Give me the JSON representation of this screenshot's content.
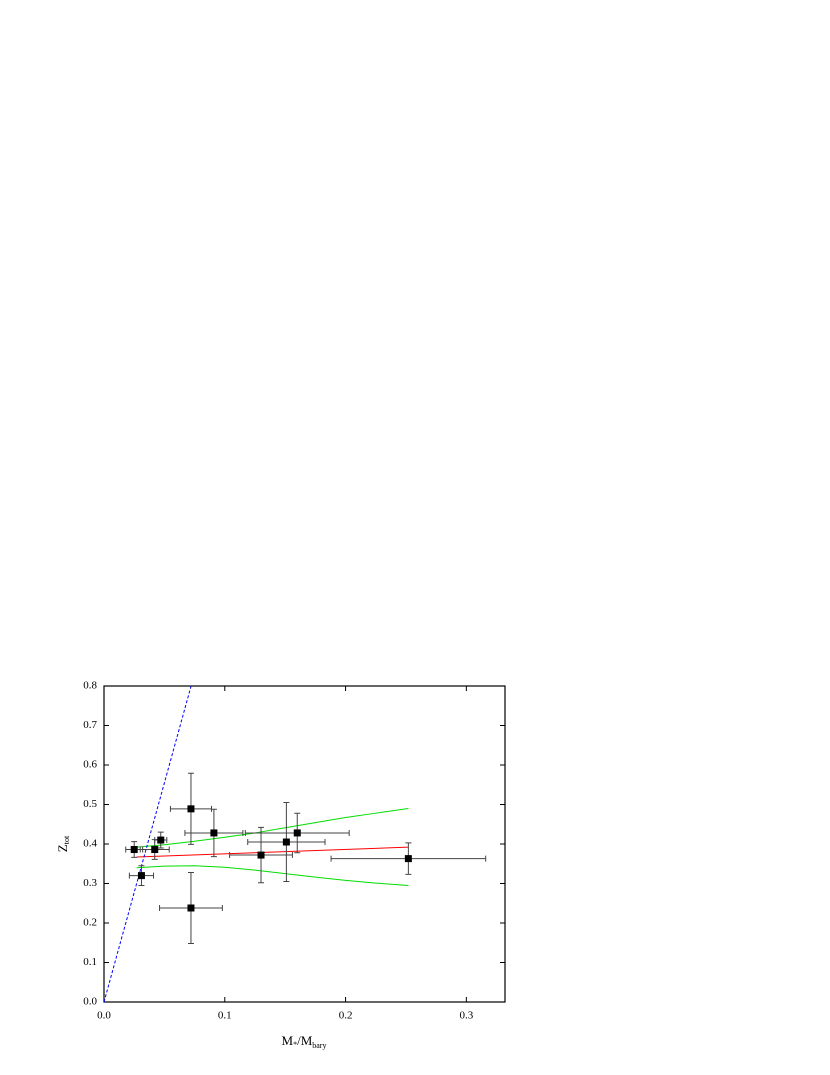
{
  "chart_data": {
    "type": "scatter",
    "xlabel": [
      "M",
      "*",
      "/M",
      "bary"
    ],
    "ylabel": [
      "Z",
      "tot"
    ],
    "x": [
      0.025,
      0.031,
      0.042,
      0.047,
      0.072,
      0.072,
      0.091,
      0.13,
      0.151,
      0.16,
      0.252
    ],
    "values": [
      0.386,
      0.32,
      0.386,
      0.41,
      0.489,
      0.238,
      0.428,
      0.372,
      0.405,
      0.428,
      0.363
    ],
    "xerr": [
      0.007,
      0.01,
      0.012,
      0.005,
      0.017,
      0.026,
      0.024,
      0.026,
      0.032,
      0.043,
      0.064
    ],
    "yerr": [
      0.02,
      0.025,
      0.025,
      0.02,
      0.09,
      0.09,
      0.06,
      0.07,
      0.1,
      0.05,
      0.04
    ],
    "color": "#000000",
    "lines": [
      {
        "color": "#ff0000",
        "dashed": false,
        "x": [
          0.027,
          0.252
        ],
        "values": [
          0.367,
          0.392
        ]
      },
      {
        "color": "#00dd00",
        "dashed": false,
        "x": [
          0.027,
          0.05,
          0.075,
          0.1,
          0.125,
          0.15,
          0.175,
          0.2,
          0.225,
          0.252
        ],
        "values": [
          0.392,
          0.398,
          0.407,
          0.417,
          0.428,
          0.441,
          0.454,
          0.467,
          0.478,
          0.49
        ]
      },
      {
        "color": "#00dd00",
        "dashed": false,
        "x": [
          0.027,
          0.05,
          0.075,
          0.1,
          0.125,
          0.15,
          0.175,
          0.2,
          0.225,
          0.252
        ],
        "values": [
          0.34,
          0.344,
          0.345,
          0.341,
          0.334,
          0.325,
          0.316,
          0.308,
          0.301,
          0.295
        ]
      },
      {
        "color": "#0000ff",
        "dashed": true,
        "x": [
          0,
          0.0721
        ],
        "values": [
          0,
          0.8
        ]
      }
    ],
    "xlim": [
      0,
      0.332
    ],
    "ylim": [
      0,
      0.8
    ],
    "xticks": [
      {
        "value": 0,
        "label": "0.0"
      },
      0.1,
      0.2,
      0.3
    ],
    "yticks": [
      {
        "value": 0,
        "label": "0.0"
      },
      0.1,
      0.2,
      0.3,
      0.4,
      0.5,
      0.6,
      0.7,
      0.8
    ]
  }
}
